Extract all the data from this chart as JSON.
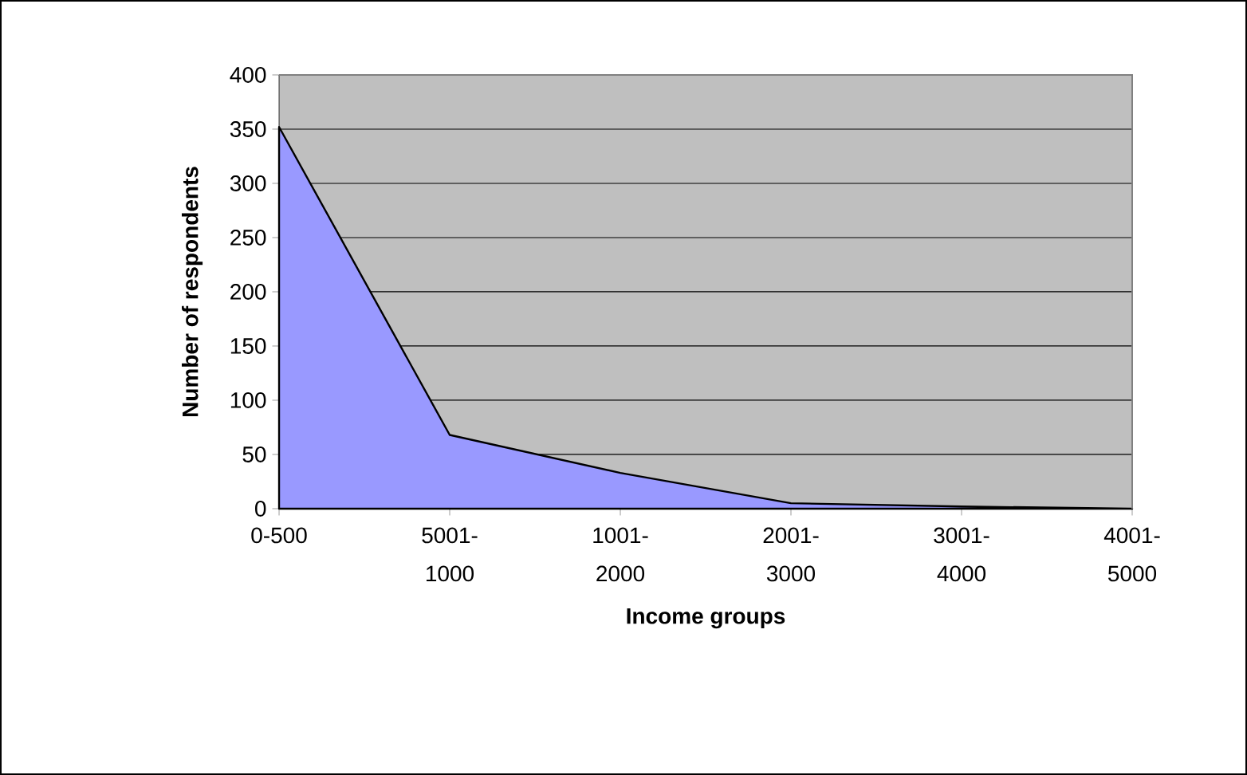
{
  "chart_data": {
    "type": "area",
    "xlabel": "Income groups",
    "ylabel": "Number of respondents",
    "categories": [
      "0-500",
      "5001-1000",
      "1001-2000",
      "2001-3000",
      "3001-4000",
      "4001-5000"
    ],
    "values": [
      352,
      68,
      33,
      5,
      2,
      0
    ],
    "color": "#9999ff",
    "ylim": [
      0,
      400
    ],
    "yticks": [
      0,
      50,
      100,
      150,
      200,
      250,
      300,
      350,
      400
    ],
    "grid": "y"
  }
}
